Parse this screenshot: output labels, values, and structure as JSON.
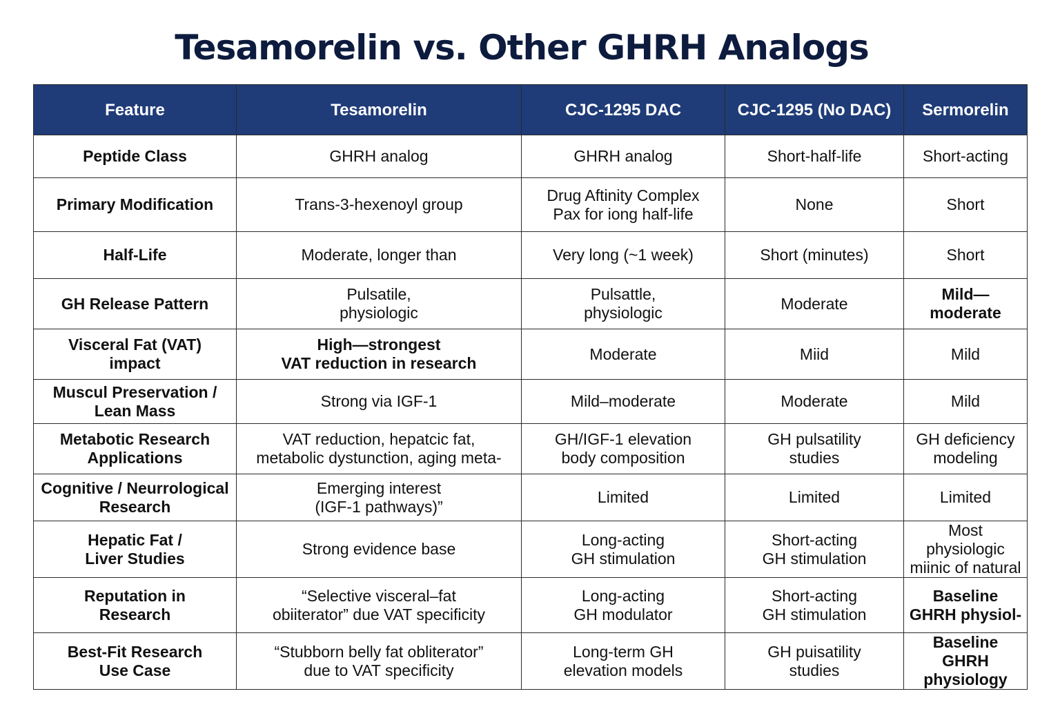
{
  "title": "Tesamorelin vs. Other GHRH Analogs",
  "colors": {
    "header_bg": "#1f3c78",
    "header_text": "#ffffff",
    "title_text": "#0d1b3e",
    "border": "#2a2a2a"
  },
  "table": {
    "headers": [
      "Feature",
      "Tesamorelin",
      "CJC-1295 DAC",
      "CJC-1295 (No DAC)",
      "Sermorelin"
    ],
    "rows": [
      [
        [
          "Peptide Class"
        ],
        [
          "GHRH analog"
        ],
        [
          "GHRH analog"
        ],
        [
          "Short-half-life"
        ],
        [
          "Short-acting"
        ]
      ],
      [
        [
          "Primary Modification"
        ],
        [
          "Trans-3-hexenoyl group"
        ],
        [
          "Drug Aftinity Complex",
          "Pax for iong half-life"
        ],
        [
          "None"
        ],
        [
          "Short"
        ]
      ],
      [
        [
          "Half-Life"
        ],
        [
          "Moderate, longer than"
        ],
        [
          "Very long (~1 week)"
        ],
        [
          "Short (minutes)"
        ],
        [
          "Short"
        ]
      ],
      [
        [
          "GH Release Pattern"
        ],
        [
          "Pulsatile,",
          "physiologic"
        ],
        [
          "Pulsattle,",
          "physiologic"
        ],
        [
          "Moderate"
        ],
        [
          "Mild—",
          "moderate"
        ]
      ],
      [
        [
          "Visceral Fat (VAT)",
          "impact"
        ],
        [
          "High—strongest",
          "VAT reduction in research"
        ],
        [
          "Moderate"
        ],
        [
          "Miid"
        ],
        [
          "Mild"
        ]
      ],
      [
        [
          "Muscul Preservation /",
          "Lean Mass"
        ],
        [
          "Strong via IGF-1"
        ],
        [
          "Mild–moderate"
        ],
        [
          "Moderate"
        ],
        [
          "Mild"
        ]
      ],
      [
        [
          "Metabotic Research",
          "Applications"
        ],
        [
          "VAT reduction, hepatcic fat,",
          "metabolic dystunction, aging meta-"
        ],
        [
          "GH/IGF-1 elevation",
          "body composition"
        ],
        [
          "GH pulsatility",
          "studies"
        ],
        [
          "GH deficiency",
          "modeling"
        ]
      ],
      [
        [
          "Cognitive / Neurrological",
          "Research"
        ],
        [
          "Emerging interest",
          "(IGF-1 pathways)”"
        ],
        [
          "Limited"
        ],
        [
          "Limited"
        ],
        [
          "Limited"
        ]
      ],
      [
        [
          "Hepatic Fat /",
          "Liver Studies"
        ],
        [
          "Strong evidence base"
        ],
        [
          "Long-acting",
          "GH stimulation"
        ],
        [
          "Short-acting",
          "GH stimulation"
        ],
        [
          "Most physiologic",
          "miinic of natural"
        ]
      ],
      [
        [
          "Reputation in",
          "Research"
        ],
        [
          "“Selective visceral–fat",
          "obiiterator” due VAT specificity"
        ],
        [
          "Long-acting",
          "GH modulator"
        ],
        [
          "Short-acting",
          "GH stimulation"
        ],
        [
          "Baseline",
          "GHRH physiol-"
        ]
      ],
      [
        [
          "Best-Fit Research",
          "Use Case"
        ],
        [
          "“Stubborn belly fat obliterator”",
          "due to VAT specificity"
        ],
        [
          "Long-term GH",
          "elevation models"
        ],
        [
          "GH puisatility",
          "studies"
        ],
        [
          "Baseline",
          "GHRH physiology"
        ]
      ]
    ]
  }
}
